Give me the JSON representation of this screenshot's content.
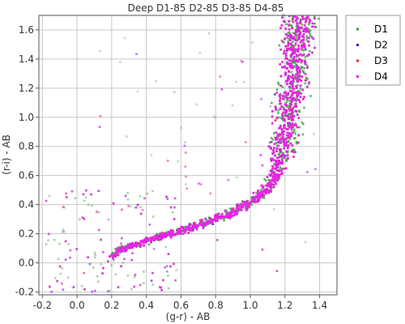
{
  "chart_data": {
    "type": "scatter",
    "title": "Deep D1-85 D2-85 D3-85 D4-85",
    "xlabel": "(g-r) - AB",
    "ylabel": "(r-i) - AB",
    "xlim": [
      -0.22,
      1.5
    ],
    "ylim": [
      -0.22,
      1.7
    ],
    "xticks": [
      -0.2,
      0.0,
      0.2,
      0.4,
      0.6,
      0.8,
      1.0,
      1.2,
      1.4
    ],
    "xtick_labels": [
      "-0.2",
      "0.0",
      "0.2",
      "0.4",
      "0.6",
      "0.8",
      "1.0",
      "1.2",
      "1.4"
    ],
    "yticks": [
      -0.2,
      0.0,
      0.2,
      0.4,
      0.6,
      0.8,
      1.0,
      1.2,
      1.4,
      1.6
    ],
    "ytick_labels": [
      "-0.2",
      "0.0",
      "0.2",
      "0.4",
      "0.6",
      "0.8",
      "1.0",
      "1.2",
      "1.4",
      "1.6"
    ],
    "grid": true,
    "legend_position": "outside-top-right",
    "locus": [
      [
        0.19,
        0.04
      ],
      [
        0.25,
        0.09
      ],
      [
        0.35,
        0.13
      ],
      [
        0.45,
        0.17
      ],
      [
        0.55,
        0.2
      ],
      [
        0.65,
        0.24
      ],
      [
        0.75,
        0.28
      ],
      [
        0.85,
        0.32
      ],
      [
        0.95,
        0.38
      ],
      [
        1.02,
        0.43
      ],
      [
        1.08,
        0.49
      ],
      [
        1.12,
        0.55
      ],
      [
        1.15,
        0.62
      ],
      [
        1.17,
        0.7
      ],
      [
        1.19,
        0.8
      ],
      [
        1.21,
        0.95
      ],
      [
        1.23,
        1.1
      ],
      [
        1.25,
        1.3
      ],
      [
        1.27,
        1.5
      ],
      [
        1.29,
        1.7
      ]
    ],
    "series": [
      {
        "name": "D1",
        "color": "#3aa43a",
        "n_points": 600
      },
      {
        "name": "D2",
        "color": "#2a2ad0",
        "n_points": 800
      },
      {
        "name": "D3",
        "color": "#e03030",
        "n_points": 600
      },
      {
        "name": "D4",
        "color": "#f020f0",
        "n_points": 1200
      }
    ]
  }
}
